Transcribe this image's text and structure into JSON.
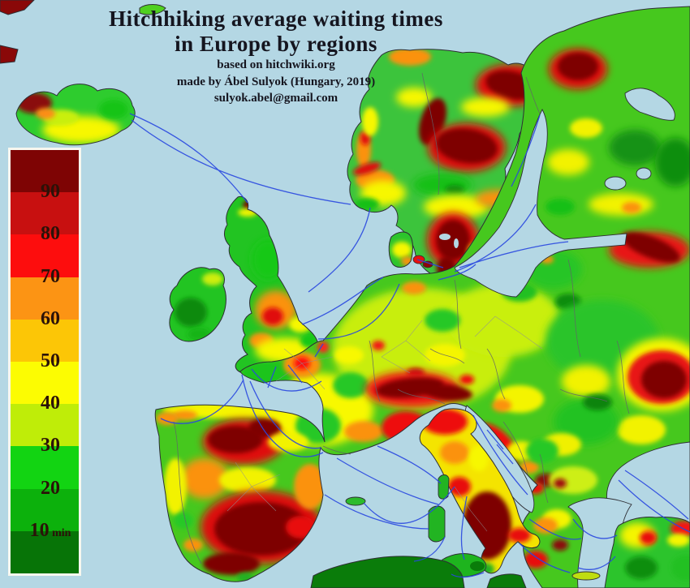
{
  "title": {
    "line1": "Hitchhiking average waiting times",
    "line2": "in Europe by regions"
  },
  "subtitle": {
    "source": "based on hitchwiki.org",
    "author": "made by Ábel Sulyok (Hungary, 2019)",
    "email": "sulyok.abel@gmail.com"
  },
  "legend": {
    "unit": "min",
    "tick_labels": [
      "90",
      "80",
      "70",
      "60",
      "50",
      "40",
      "30",
      "20",
      "10"
    ],
    "bands": [
      {
        "range": ">90",
        "color": "#7e0404"
      },
      {
        "range": "80-90",
        "color": "#c81010"
      },
      {
        "range": "70-80",
        "color": "#fd0d0d"
      },
      {
        "range": "60-70",
        "color": "#fc9414"
      },
      {
        "range": "50-60",
        "color": "#fcc606"
      },
      {
        "range": "40-50",
        "color": "#fcfc02"
      },
      {
        "range": "30-40",
        "color": "#bfed08"
      },
      {
        "range": "20-30",
        "color": "#12d412"
      },
      {
        "range": "10-20",
        "color": "#0cb10c"
      },
      {
        "range": "<10",
        "color": "#077407"
      }
    ]
  },
  "map": {
    "sea_color": "#b4d7e4",
    "route_line_color": "#2947e0",
    "coast_line_color": "#2e2e34",
    "border_line_color": "#62626a",
    "road_line_color": "#8f8f95"
  }
}
